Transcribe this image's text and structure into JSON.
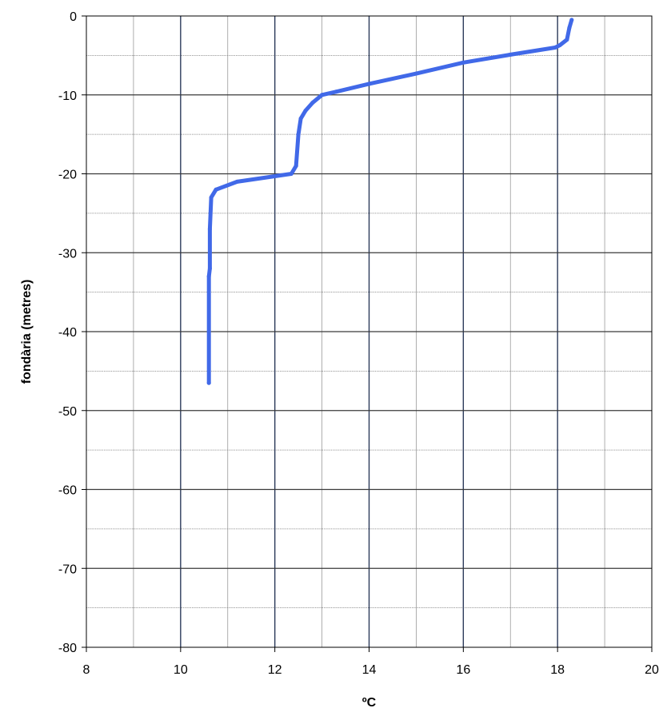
{
  "chart_data": {
    "type": "line",
    "title": "",
    "xlabel": "ºC",
    "ylabel": "fondària (metres)",
    "xlim": [
      8,
      20
    ],
    "ylim": [
      -80,
      0
    ],
    "x_ticks": [
      8,
      10,
      12,
      14,
      16,
      18,
      20
    ],
    "x_tick_labels": [
      "8",
      "10",
      "12",
      "14",
      "16",
      "18",
      "20"
    ],
    "x_minor_grid": [
      9,
      11,
      13,
      15,
      17,
      19
    ],
    "y_ticks": [
      0,
      -10,
      -20,
      -30,
      -40,
      -50,
      -60,
      -70,
      -80
    ],
    "y_tick_labels": [
      "0",
      "-10",
      "-20",
      "-30",
      "-40",
      "-50",
      "-60",
      "-70",
      "-80"
    ],
    "y_minor_grid": [
      -5,
      -15,
      -25,
      -35,
      -45,
      -55,
      -65,
      -75
    ],
    "grid": true,
    "legend": "none",
    "series": [
      {
        "color": "#4169e8",
        "points": [
          [
            18.3,
            -0.5
          ],
          [
            18.25,
            -1.5
          ],
          [
            18.2,
            -3
          ],
          [
            18.05,
            -3.7
          ],
          [
            17.95,
            -4
          ],
          [
            17.0,
            -4.9
          ],
          [
            16.0,
            -5.9
          ],
          [
            15.0,
            -7.3
          ],
          [
            14.0,
            -8.6
          ],
          [
            13.3,
            -9.6
          ],
          [
            13.0,
            -10.0
          ],
          [
            12.8,
            -11.0
          ],
          [
            12.65,
            -12.0
          ],
          [
            12.55,
            -13.0
          ],
          [
            12.5,
            -15.0
          ],
          [
            12.45,
            -19.0
          ],
          [
            12.35,
            -20.0
          ],
          [
            11.2,
            -21.0
          ],
          [
            10.75,
            -22.0
          ],
          [
            10.65,
            -23.0
          ],
          [
            10.62,
            -27.0
          ],
          [
            10.62,
            -32.0
          ],
          [
            10.6,
            -33.0
          ],
          [
            10.6,
            -40.0
          ],
          [
            10.6,
            -46.5
          ]
        ]
      }
    ]
  }
}
